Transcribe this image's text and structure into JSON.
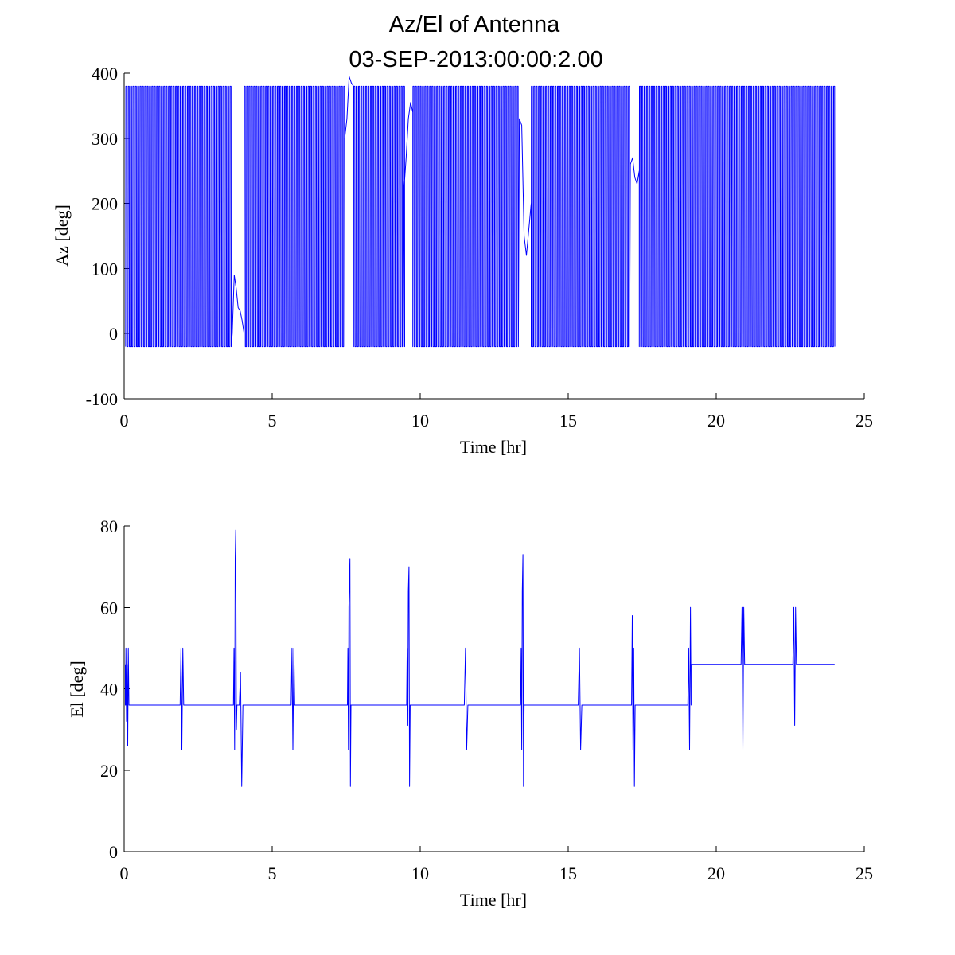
{
  "colors": {
    "series": "#0000ff",
    "axis": "#000000",
    "background": "#ffffff"
  },
  "figure": {
    "title_line1": "Az/El of Antenna",
    "title_line2": "03-SEP-2013:00:00:2.00"
  },
  "chart_data": [
    {
      "type": "line",
      "name": "azimuth",
      "xlabel": "Time [hr]",
      "ylabel": "Az [deg]",
      "xlim": [
        0,
        25
      ],
      "ylim": [
        -100,
        400
      ],
      "xticks": [
        0,
        5,
        10,
        15,
        20,
        25
      ],
      "yticks": [
        -100,
        0,
        100,
        200,
        300,
        400
      ],
      "grid": false,
      "series": [
        {
          "name": "Az",
          "pattern": "sawtooth",
          "t_start": 0.05,
          "t_end": 24.0,
          "cycle_hr": 0.08,
          "low": -20,
          "high": 380,
          "gaps": [
            {
              "t0": 3.65,
              "t1": 4.05,
              "values": [
                0,
                90,
                70,
                40,
                35,
                20,
                0
              ]
            },
            {
              "t0": 7.45,
              "t1": 7.75,
              "values": [
                300,
                330,
                395,
                385,
                380
              ]
            },
            {
              "t0": 9.45,
              "t1": 9.75,
              "values": [
                220,
                270,
                330,
                355,
                340
              ]
            },
            {
              "t0": 13.35,
              "t1": 13.75,
              "values": [
                330,
                320,
                150,
                120,
                160,
                200
              ]
            },
            {
              "t0": 17.1,
              "t1": 17.4,
              "values": [
                260,
                270,
                240,
                230,
                250
              ]
            }
          ]
        }
      ]
    },
    {
      "type": "line",
      "name": "elevation",
      "xlabel": "Time [hr]",
      "ylabel": "El [deg]",
      "xlim": [
        0,
        25
      ],
      "ylim": [
        0,
        80
      ],
      "xticks": [
        0,
        5,
        10,
        15,
        20,
        25
      ],
      "yticks": [
        0,
        20,
        40,
        60,
        80
      ],
      "grid": false,
      "series": [
        {
          "name": "El",
          "baseline_segments": [
            {
              "t0": 0.05,
              "t1": 19.15,
              "value": 36
            },
            {
              "t0": 19.15,
              "t1": 24.0,
              "value": 46
            }
          ],
          "spikes": [
            {
              "t": 0.1,
              "values": [
                36,
                50,
                32,
                46,
                26,
                50,
                36
              ]
            },
            {
              "t": 1.95,
              "values": [
                36,
                50,
                25,
                50,
                36
              ]
            },
            {
              "t": 3.75,
              "values": [
                36,
                50,
                25,
                72,
                79,
                30,
                36
              ]
            },
            {
              "t": 3.95,
              "values": [
                36,
                44,
                16,
                36
              ]
            },
            {
              "t": 5.7,
              "values": [
                36,
                50,
                25,
                50,
                36
              ]
            },
            {
              "t": 7.6,
              "values": [
                36,
                50,
                25,
                60,
                66,
                72,
                16,
                36
              ]
            },
            {
              "t": 9.6,
              "values": [
                36,
                50,
                31,
                64,
                70,
                16,
                36
              ]
            },
            {
              "t": 11.55,
              "values": [
                36,
                50,
                25,
                36
              ]
            },
            {
              "t": 13.45,
              "values": [
                36,
                50,
                25,
                64,
                73,
                16,
                36
              ]
            },
            {
              "t": 15.4,
              "values": [
                36,
                50,
                25,
                36
              ]
            },
            {
              "t": 17.2,
              "values": [
                36,
                58,
                25,
                50,
                16,
                36
              ]
            },
            {
              "t": 19.1,
              "values": [
                36,
                50,
                25,
                60,
                46
              ]
            },
            {
              "t": 20.9,
              "values": [
                46,
                60,
                25,
                60,
                46
              ]
            },
            {
              "t": 22.65,
              "values": [
                46,
                60,
                31,
                60,
                46
              ]
            }
          ]
        }
      ]
    }
  ]
}
